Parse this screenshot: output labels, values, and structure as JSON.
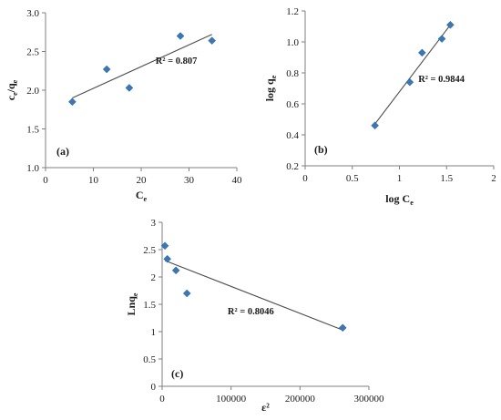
{
  "colors": {
    "marker": "#3a78b5",
    "axis": "#7f7f7f",
    "trend": "#4d4d4d"
  },
  "chart_data": [
    {
      "type": "scatter",
      "panel_label": "(a)",
      "xlabel": "Ce",
      "ylabel": "ce/qe",
      "xlim": [
        0,
        40
      ],
      "ylim": [
        1.0,
        3.0
      ],
      "x_ticks": [
        0,
        10,
        20,
        30,
        40
      ],
      "y_ticks": [
        1.0,
        1.5,
        2.0,
        2.5,
        3.0
      ],
      "x_tick_labels": [
        "0",
        "10",
        "20",
        "30",
        "40"
      ],
      "y_tick_labels": [
        "1.0",
        "1.5",
        "2.0",
        "2.5",
        "3.0"
      ],
      "points": [
        {
          "x": 5.6,
          "y": 1.85
        },
        {
          "x": 12.8,
          "y": 2.27
        },
        {
          "x": 17.5,
          "y": 2.03
        },
        {
          "x": 28.2,
          "y": 2.7
        },
        {
          "x": 34.8,
          "y": 2.64
        }
      ],
      "trendline": [
        [
          5.6,
          1.9
        ],
        [
          34.8,
          2.72
        ]
      ],
      "annotation": "R² = 0.807",
      "annotation_pos": {
        "x": 23.0,
        "y": 2.34
      },
      "grid": false
    },
    {
      "type": "scatter",
      "panel_label": "(b)",
      "xlabel": "log Ce",
      "ylabel": "log qe",
      "xlim": [
        0,
        2
      ],
      "ylim": [
        0.2,
        1.2
      ],
      "x_ticks": [
        0,
        0.5,
        1,
        1.5,
        2
      ],
      "y_ticks": [
        0.2,
        0.4,
        0.6,
        0.8,
        1.0,
        1.2
      ],
      "x_tick_labels": [
        "0",
        "0.5",
        "1",
        "1.5",
        "2"
      ],
      "y_tick_labels": [
        "0.2",
        "0.4",
        "0.6",
        "0.8",
        "1.0",
        "1.2"
      ],
      "points": [
        {
          "x": 0.74,
          "y": 0.46
        },
        {
          "x": 1.11,
          "y": 0.74
        },
        {
          "x": 1.24,
          "y": 0.93
        },
        {
          "x": 1.45,
          "y": 1.02
        },
        {
          "x": 1.54,
          "y": 1.11
        }
      ],
      "trendline": [
        [
          0.74,
          0.47
        ],
        [
          1.54,
          1.11
        ]
      ],
      "annotation": "R² = 0.9844",
      "annotation_pos": {
        "x": 1.2,
        "y": 0.74
      },
      "grid": false
    },
    {
      "type": "scatter",
      "panel_label": "(c)",
      "xlabel": "ε²",
      "ylabel": "Lnqe",
      "xlim": [
        0,
        300000
      ],
      "ylim": [
        0,
        3
      ],
      "x_ticks": [
        0,
        100000,
        200000,
        300000
      ],
      "y_ticks": [
        0,
        0.5,
        1,
        1.5,
        2,
        2.5,
        3
      ],
      "x_tick_labels": [
        "0",
        "100000",
        "200000",
        "300000"
      ],
      "y_tick_labels": [
        "0",
        "0.5",
        "1",
        "1.5",
        "2",
        "2.5",
        "3"
      ],
      "points": [
        {
          "x": 4000,
          "y": 2.57
        },
        {
          "x": 7500,
          "y": 2.33
        },
        {
          "x": 20000,
          "y": 2.12
        },
        {
          "x": 36000,
          "y": 1.7
        },
        {
          "x": 262000,
          "y": 1.07
        }
      ],
      "trendline": [
        [
          4000,
          2.3
        ],
        [
          262000,
          1.03
        ]
      ],
      "annotation": "R² = 0.8046",
      "annotation_pos": {
        "x": 95000,
        "y": 1.32
      },
      "grid": false
    }
  ]
}
